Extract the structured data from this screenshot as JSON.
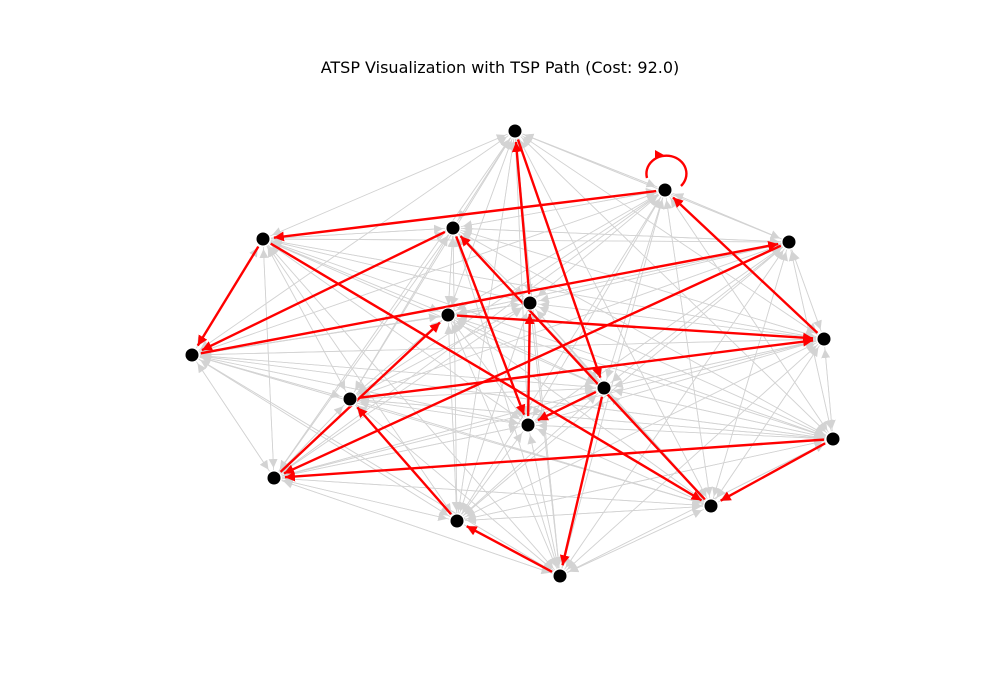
{
  "title": "ATSP Visualization with TSP Path (Cost: 92.0)",
  "colors": {
    "background": "#ffffff",
    "edge": "#d3d3d3",
    "path": "#ff0000",
    "node": "#000000"
  },
  "graph": {
    "nodes": [
      "n0",
      "n1",
      "n2",
      "n3",
      "n4",
      "n5",
      "n6",
      "n7",
      "n8",
      "n9",
      "n10",
      "n11",
      "n12",
      "n13",
      "n14",
      "n15",
      "n16"
    ],
    "tsp_path": [
      [
        "n1",
        "n1"
      ],
      [
        "n1",
        "n2"
      ],
      [
        "n2",
        "n5"
      ],
      [
        "n5",
        "n4"
      ],
      [
        "n4",
        "n12"
      ],
      [
        "n12",
        "n6"
      ],
      [
        "n6",
        "n8"
      ],
      [
        "n8",
        "n1"
      ],
      [
        "n3",
        "n5"
      ],
      [
        "n3",
        "n11"
      ],
      [
        "n11",
        "n7"
      ],
      [
        "n7",
        "n0"
      ],
      [
        "n0",
        "n10"
      ],
      [
        "n10",
        "n16"
      ],
      [
        "n16",
        "n15"
      ],
      [
        "n15",
        "n9"
      ],
      [
        "n9",
        "n8"
      ],
      [
        "n14",
        "n3"
      ],
      [
        "n13",
        "n14"
      ],
      [
        "n2",
        "n14"
      ],
      [
        "n13",
        "n12"
      ],
      [
        "n10",
        "n11"
      ]
    ]
  }
}
